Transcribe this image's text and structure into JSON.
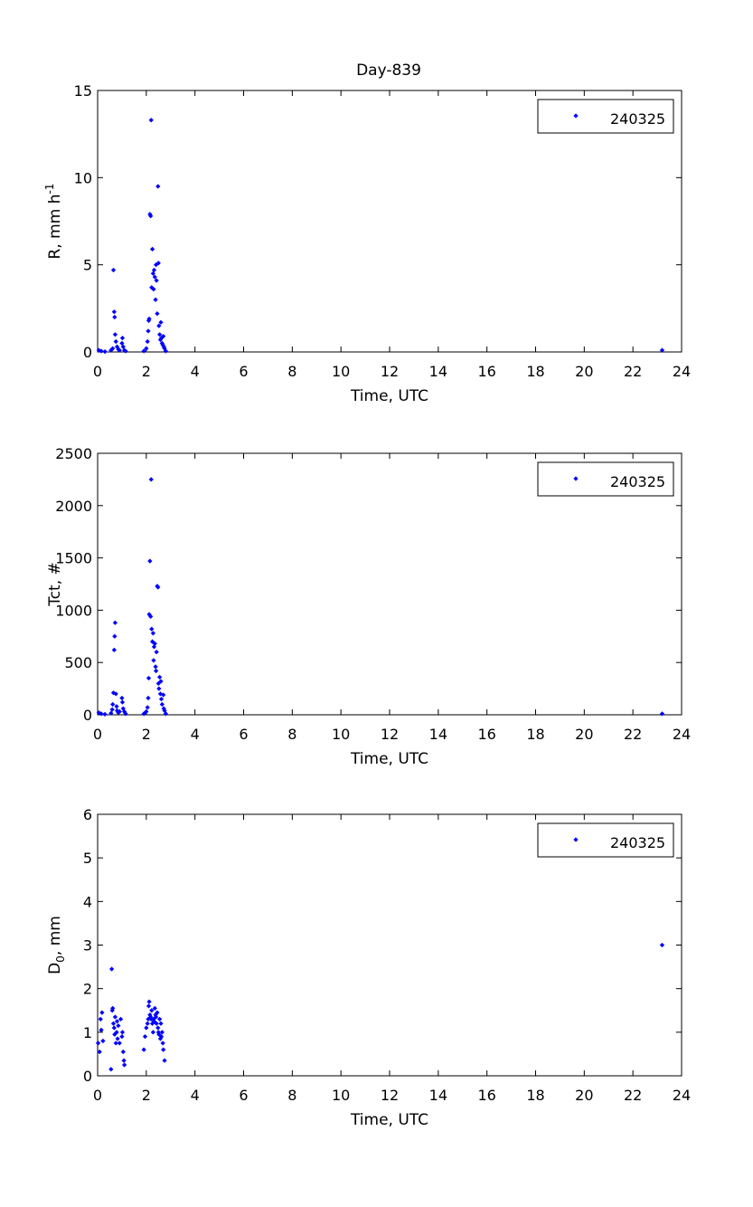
{
  "figure": {
    "title": "Day-839",
    "colors": {
      "marker": "#0000ff",
      "axes": "#000000",
      "background": "#ffffff"
    }
  },
  "chart_data": [
    {
      "type": "scatter",
      "title": "Day-839",
      "xlabel": "Time, UTC",
      "ylabel": "R, mm h",
      "ylabel_superscript": "-1",
      "xlim": [
        0,
        24
      ],
      "ylim": [
        0,
        15
      ],
      "xticks": [
        0,
        2,
        4,
        6,
        8,
        10,
        12,
        14,
        16,
        18,
        20,
        22,
        24
      ],
      "yticks": [
        0,
        5,
        10,
        15
      ],
      "grid": false,
      "legend": {
        "position": "top-right",
        "entries": [
          "240325"
        ]
      },
      "series": [
        {
          "name": "240325",
          "marker": "diamond",
          "color": "#0000ff",
          "points": [
            [
              0.05,
              0.1
            ],
            [
              0.15,
              0.05
            ],
            [
              0.3,
              0.02
            ],
            [
              0.55,
              0.1
            ],
            [
              0.62,
              0.2
            ],
            [
              0.65,
              4.7
            ],
            [
              0.68,
              2.3
            ],
            [
              0.7,
              2.0
            ],
            [
              0.72,
              1.0
            ],
            [
              0.75,
              0.6
            ],
            [
              0.8,
              0.3
            ],
            [
              0.85,
              0.15
            ],
            [
              0.9,
              0.1
            ],
            [
              1.0,
              0.5
            ],
            [
              1.02,
              0.8
            ],
            [
              1.05,
              0.3
            ],
            [
              1.1,
              0.1
            ],
            [
              1.15,
              0.05
            ],
            [
              1.9,
              0.05
            ],
            [
              2.0,
              0.2
            ],
            [
              2.05,
              0.6
            ],
            [
              2.08,
              1.2
            ],
            [
              2.1,
              1.8
            ],
            [
              2.12,
              1.9
            ],
            [
              2.15,
              7.9
            ],
            [
              2.18,
              7.8
            ],
            [
              2.2,
              13.3
            ],
            [
              2.22,
              3.7
            ],
            [
              2.25,
              5.9
            ],
            [
              2.28,
              4.5
            ],
            [
              2.3,
              3.6
            ],
            [
              2.32,
              4.7
            ],
            [
              2.35,
              4.3
            ],
            [
              2.38,
              3.0
            ],
            [
              2.4,
              5.0
            ],
            [
              2.42,
              4.1
            ],
            [
              2.45,
              2.2
            ],
            [
              2.48,
              9.5
            ],
            [
              2.5,
              5.1
            ],
            [
              2.52,
              1.5
            ],
            [
              2.55,
              1.0
            ],
            [
              2.58,
              0.7
            ],
            [
              2.6,
              1.7
            ],
            [
              2.62,
              0.8
            ],
            [
              2.65,
              0.5
            ],
            [
              2.68,
              0.4
            ],
            [
              2.7,
              0.9
            ],
            [
              2.72,
              0.3
            ],
            [
              2.75,
              0.2
            ],
            [
              2.8,
              0.05
            ],
            [
              23.2,
              0.1
            ]
          ]
        }
      ]
    },
    {
      "type": "scatter",
      "title": "",
      "xlabel": "Time, UTC",
      "ylabel": "Tct, #",
      "xlim": [
        0,
        24
      ],
      "ylim": [
        0,
        2500
      ],
      "xticks": [
        0,
        2,
        4,
        6,
        8,
        10,
        12,
        14,
        16,
        18,
        20,
        22,
        24
      ],
      "yticks": [
        0,
        500,
        1000,
        1500,
        2000,
        2500
      ],
      "grid": false,
      "legend": {
        "position": "top-right",
        "entries": [
          "240325"
        ]
      },
      "series": [
        {
          "name": "240325",
          "marker": "diamond",
          "color": "#0000ff",
          "points": [
            [
              0.05,
              20
            ],
            [
              0.15,
              10
            ],
            [
              0.3,
              5
            ],
            [
              0.55,
              15
            ],
            [
              0.6,
              50
            ],
            [
              0.62,
              100
            ],
            [
              0.65,
              210
            ],
            [
              0.68,
              620
            ],
            [
              0.7,
              750
            ],
            [
              0.72,
              880
            ],
            [
              0.75,
              200
            ],
            [
              0.78,
              80
            ],
            [
              0.8,
              40
            ],
            [
              0.85,
              20
            ],
            [
              0.9,
              30
            ],
            [
              1.0,
              160
            ],
            [
              1.02,
              120
            ],
            [
              1.05,
              60
            ],
            [
              1.1,
              30
            ],
            [
              1.15,
              10
            ],
            [
              1.9,
              10
            ],
            [
              2.0,
              30
            ],
            [
              2.05,
              70
            ],
            [
              2.08,
              160
            ],
            [
              2.1,
              350
            ],
            [
              2.12,
              960
            ],
            [
              2.15,
              1470
            ],
            [
              2.18,
              940
            ],
            [
              2.2,
              2250
            ],
            [
              2.22,
              820
            ],
            [
              2.25,
              700
            ],
            [
              2.28,
              780
            ],
            [
              2.3,
              520
            ],
            [
              2.32,
              650
            ],
            [
              2.35,
              680
            ],
            [
              2.38,
              460
            ],
            [
              2.4,
              420
            ],
            [
              2.42,
              600
            ],
            [
              2.45,
              1230
            ],
            [
              2.48,
              1220
            ],
            [
              2.5,
              300
            ],
            [
              2.52,
              250
            ],
            [
              2.55,
              360
            ],
            [
              2.58,
              200
            ],
            [
              2.6,
              320
            ],
            [
              2.62,
              150
            ],
            [
              2.65,
              100
            ],
            [
              2.7,
              190
            ],
            [
              2.72,
              60
            ],
            [
              2.75,
              40
            ],
            [
              2.8,
              10
            ],
            [
              23.2,
              10
            ]
          ]
        }
      ]
    },
    {
      "type": "scatter",
      "title": "",
      "xlabel": "Time, UTC",
      "ylabel": "D",
      "ylabel_subscript": "0",
      "ylabel_suffix": ", mm",
      "xlim": [
        0,
        24
      ],
      "ylim": [
        0,
        6
      ],
      "xticks": [
        0,
        2,
        4,
        6,
        8,
        10,
        12,
        14,
        16,
        18,
        20,
        22,
        24
      ],
      "yticks": [
        0,
        1,
        2,
        3,
        4,
        5,
        6
      ],
      "grid": false,
      "legend": {
        "position": "top-right",
        "entries": [
          "240325"
        ]
      },
      "series": [
        {
          "name": "240325",
          "marker": "diamond",
          "color": "#0000ff",
          "points": [
            [
              0.02,
              0.75
            ],
            [
              0.08,
              0.55
            ],
            [
              0.12,
              1.3
            ],
            [
              0.15,
              1.05
            ],
            [
              0.18,
              1.45
            ],
            [
              0.22,
              0.8
            ],
            [
              0.55,
              0.15
            ],
            [
              0.58,
              2.45
            ],
            [
              0.6,
              1.5
            ],
            [
              0.62,
              1.55
            ],
            [
              0.65,
              1.2
            ],
            [
              0.68,
              1.1
            ],
            [
              0.7,
              0.95
            ],
            [
              0.72,
              1.35
            ],
            [
              0.75,
              0.75
            ],
            [
              0.78,
              1.0
            ],
            [
              0.8,
              1.25
            ],
            [
              0.82,
              0.85
            ],
            [
              0.85,
              1.15
            ],
            [
              0.9,
              0.75
            ],
            [
              0.95,
              1.3
            ],
            [
              1.0,
              0.9
            ],
            [
              1.02,
              1.0
            ],
            [
              1.05,
              0.55
            ],
            [
              1.08,
              0.35
            ],
            [
              1.1,
              0.25
            ],
            [
              1.9,
              0.6
            ],
            [
              1.95,
              0.9
            ],
            [
              2.0,
              1.1
            ],
            [
              2.05,
              1.2
            ],
            [
              2.08,
              1.3
            ],
            [
              2.1,
              1.6
            ],
            [
              2.12,
              1.7
            ],
            [
              2.15,
              1.4
            ],
            [
              2.18,
              1.35
            ],
            [
              2.2,
              1.3
            ],
            [
              2.22,
              1.5
            ],
            [
              2.25,
              1.2
            ],
            [
              2.28,
              1.0
            ],
            [
              2.3,
              1.3
            ],
            [
              2.32,
              1.25
            ],
            [
              2.35,
              1.55
            ],
            [
              2.38,
              1.4
            ],
            [
              2.4,
              1.35
            ],
            [
              2.42,
              1.2
            ],
            [
              2.45,
              1.45
            ],
            [
              2.48,
              1.1
            ],
            [
              2.5,
              1.0
            ],
            [
              2.52,
              0.95
            ],
            [
              2.55,
              1.3
            ],
            [
              2.58,
              0.85
            ],
            [
              2.6,
              1.2
            ],
            [
              2.62,
              0.9
            ],
            [
              2.65,
              1.0
            ],
            [
              2.68,
              0.75
            ],
            [
              2.7,
              0.6
            ],
            [
              2.75,
              0.35
            ],
            [
              23.2,
              3.0
            ]
          ]
        }
      ]
    }
  ]
}
